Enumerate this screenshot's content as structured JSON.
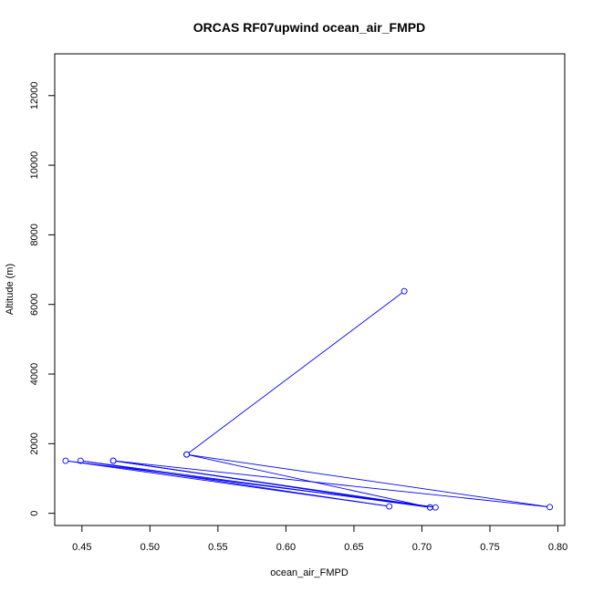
{
  "chart_data": {
    "type": "line",
    "title": "ORCAS RF07upwind ocean_air_FMPD",
    "xlabel": "ocean_air_FMPD",
    "ylabel": "Altitude (m)",
    "xlim": [
      0.43,
      0.805
    ],
    "ylim": [
      -350,
      13200
    ],
    "x_ticks": [
      0.45,
      0.5,
      0.55,
      0.6,
      0.65,
      0.7,
      0.75,
      0.8
    ],
    "x_tick_labels": [
      "0.45",
      "0.50",
      "0.55",
      "0.60",
      "0.65",
      "0.70",
      "0.75",
      "0.80"
    ],
    "y_ticks": [
      0,
      2000,
      4000,
      6000,
      8000,
      10000,
      12000
    ],
    "y_tick_labels": [
      "0",
      "2000",
      "4000",
      "6000",
      "8000",
      "10000",
      "12000"
    ],
    "grid": false,
    "legend": "none",
    "series": [
      {
        "color": "#0000ff",
        "markers": "open-circle",
        "points": [
          {
            "x": 0.687,
            "y": 6380
          },
          {
            "x": 0.527,
            "y": 1690
          },
          {
            "x": 0.706,
            "y": 170
          },
          {
            "x": 0.473,
            "y": 1510
          },
          {
            "x": 0.706,
            "y": 170
          },
          {
            "x": 0.449,
            "y": 1510
          },
          {
            "x": 0.676,
            "y": 200
          },
          {
            "x": 0.438,
            "y": 1510
          },
          {
            "x": 0.71,
            "y": 170
          },
          {
            "x": 0.473,
            "y": 1510
          },
          {
            "x": 0.794,
            "y": 180
          },
          {
            "x": 0.527,
            "y": 1690
          }
        ]
      }
    ]
  }
}
